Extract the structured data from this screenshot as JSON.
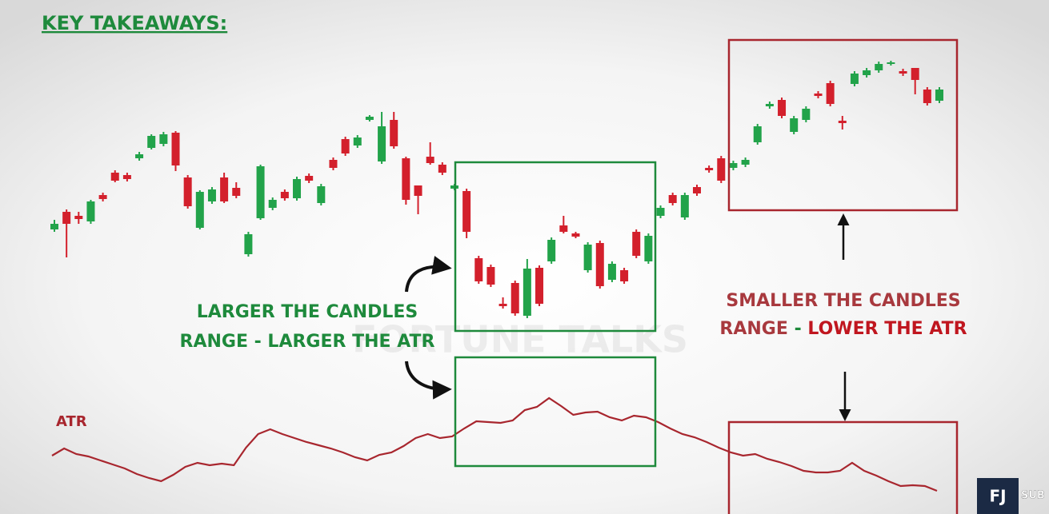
{
  "header": {
    "title": "KEY TAKEAWAYS:"
  },
  "chart_data": [
    {
      "type": "candlestick",
      "up_color": "#22a34a",
      "down_color": "#d3202c",
      "ylim": [
        0,
        360
      ],
      "open": [
        113,
        135,
        130,
        123,
        156,
        184,
        181,
        202,
        215,
        220,
        234,
        178,
        115,
        148,
        178,
        165,
        82,
        127,
        140,
        160,
        152,
        180,
        146,
        200,
        226,
        218,
        250,
        198,
        250,
        202,
        168,
        204,
        194,
        164,
        161,
        77,
        66,
        20,
        46,
        5,
        65,
        73,
        118,
        108,
        62,
        96,
        50,
        62,
        110,
        73,
        130,
        156,
        128,
        166,
        190,
        202,
        190,
        194,
        222,
        267,
        275,
        235,
        250,
        283,
        296,
        249,
        295,
        306,
        312,
        320,
        311,
        315,
        288,
        274
      ],
      "high": [
        125,
        138,
        135,
        150,
        159,
        187,
        184,
        210,
        232,
        235,
        236,
        181,
        162,
        166,
        184,
        172,
        110,
        194,
        153,
        163,
        179,
        183,
        170,
        203,
        229,
        231,
        256,
        260,
        260,
        204,
        168,
        222,
        197,
        170,
        164,
        80,
        69,
        28,
        49,
        76,
        68,
        103,
        130,
        110,
        97,
        99,
        73,
        65,
        113,
        108,
        143,
        159,
        159,
        169,
        193,
        205,
        199,
        203,
        245,
        273,
        278,
        255,
        267,
        286,
        299,
        255,
        311,
        315,
        323,
        324,
        314,
        315,
        291,
        291
      ],
      "low": [
        110,
        78,
        120,
        120,
        148,
        172,
        173,
        199,
        213,
        217,
        186,
        139,
        113,
        145,
        146,
        152,
        79,
        125,
        137,
        149,
        149,
        171,
        143,
        187,
        205,
        215,
        248,
        195,
        214,
        144,
        132,
        194,
        181,
        162,
        102,
        45,
        41,
        14,
        5,
        2,
        17,
        70,
        108,
        102,
        59,
        39,
        47,
        45,
        77,
        70,
        127,
        143,
        125,
        155,
        184,
        171,
        187,
        191,
        219,
        264,
        252,
        232,
        247,
        277,
        267,
        238,
        292,
        303,
        309,
        318,
        305,
        282,
        268,
        271
      ],
      "close": [
        120,
        120,
        126,
        148,
        151,
        174,
        176,
        207,
        230,
        232,
        193,
        142,
        160,
        163,
        148,
        155,
        107,
        192,
        150,
        152,
        176,
        174,
        167,
        190,
        208,
        228,
        254,
        242,
        217,
        150,
        155,
        196,
        184,
        168,
        110,
        48,
        44,
        17,
        8,
        64,
        20,
        100,
        110,
        104,
        94,
        42,
        70,
        48,
        80,
        105,
        140,
        146,
        156,
        158,
        187,
        174,
        196,
        200,
        242,
        270,
        255,
        252,
        264,
        280,
        270,
        246,
        308,
        312,
        320,
        322,
        308,
        300,
        271,
        288
      ]
    },
    {
      "type": "line",
      "title": "ATR",
      "color": "#a8262e",
      "ylim": [
        0,
        150
      ],
      "values": [
        70,
        79,
        72,
        69,
        64,
        59,
        54,
        47,
        42,
        38,
        46,
        56,
        61,
        58,
        60,
        58,
        80,
        97,
        103,
        97,
        92,
        87,
        83,
        79,
        74,
        68,
        64,
        71,
        74,
        82,
        92,
        97,
        92,
        94,
        104,
        113,
        112,
        111,
        114,
        127,
        131,
        142,
        132,
        121,
        124,
        125,
        118,
        114,
        120,
        118,
        112,
        104,
        97,
        93,
        87,
        80,
        74,
        70,
        72,
        66,
        62,
        57,
        51,
        49,
        49,
        51,
        61,
        51,
        45,
        38,
        32,
        33,
        32,
        26
      ]
    }
  ],
  "annotations": {
    "larger": {
      "line1": "LARGER THE CANDLES",
      "line2": "RANGE - LARGER THE ATR"
    },
    "smaller": {
      "line1": "SMALLER THE CANDLES",
      "line2a": "RANGE",
      "line2b": "-",
      "line2c": "LOWER THE ATR"
    }
  },
  "watermark": "FORTUNE TALKS",
  "logo": {
    "mark": "FJ",
    "subscribe": "SUB SCRIBE"
  }
}
